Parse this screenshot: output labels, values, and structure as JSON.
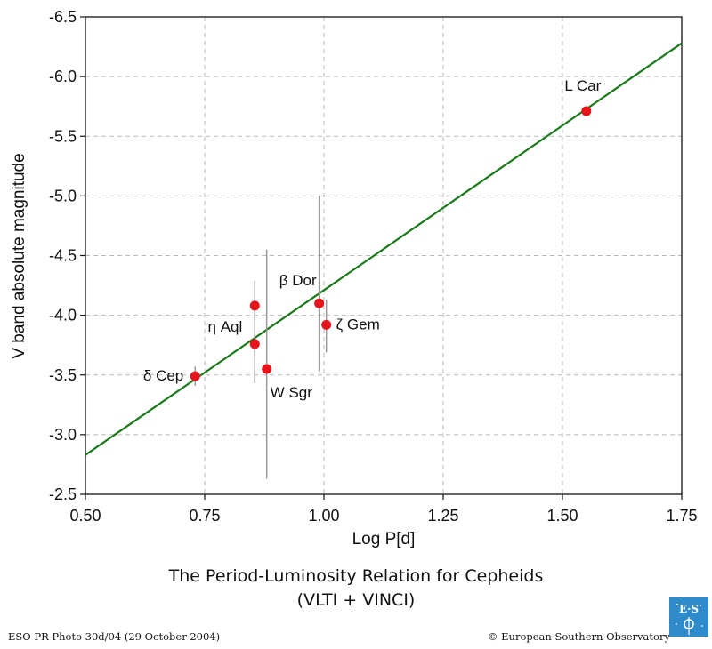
{
  "chart_data": {
    "type": "scatter",
    "xlabel": "Log P[d]",
    "ylabel": "V band absolute magnitude",
    "xlim": [
      0.5,
      1.75
    ],
    "ylim": [
      -2.5,
      -6.5
    ],
    "y_inverted": true,
    "xticks": [
      "0.50",
      "0.75",
      "1.00",
      "1.25",
      "1.50",
      "1.75"
    ],
    "yticks": [
      "-6.5",
      "-6.0",
      "-5.5",
      "-5.0",
      "-4.5",
      "-4.0",
      "-3.5",
      "-3.0",
      "-2.5"
    ],
    "grid": true,
    "fit_line": {
      "x": [
        0.5,
        1.75
      ],
      "y": [
        -2.83,
        -6.28
      ],
      "color": "#1a7a1a"
    },
    "points": [
      {
        "label": "δ Cep",
        "x": 0.73,
        "y": -3.49,
        "err_lo": -3.41,
        "err_hi": -3.57
      },
      {
        "label": "η Aql",
        "x": 0.855,
        "y": -3.76,
        "err_lo": -3.43,
        "err_hi": -4.08
      },
      {
        "label": "",
        "x": 0.855,
        "y": -4.08,
        "err_lo": -4.08,
        "err_hi": -4.29
      },
      {
        "label": "W Sgr",
        "x": 0.88,
        "y": -3.55,
        "err_lo": -2.63,
        "err_hi": -4.55
      },
      {
        "label": "β Dor",
        "x": 0.99,
        "y": -4.1,
        "err_lo": -3.53,
        "err_hi": -5.0
      },
      {
        "label": "ζ  Gem",
        "x": 1.005,
        "y": -3.92,
        "err_lo": -3.69,
        "err_hi": -4.13
      },
      {
        "label": "L Car",
        "x": 1.55,
        "y": -5.71,
        "err_lo": -5.71,
        "err_hi": -5.71
      }
    ],
    "point_color": "#e8141b"
  },
  "caption": {
    "line1": "The Period-Luminosity Relation for Cepheids",
    "line2": "(VLTI + VINCI)"
  },
  "footer": {
    "left": "ESO PR Photo 30d/04 (29 October 2004)",
    "right": "© European Southern Observatory"
  },
  "logo": {
    "text": "ESO",
    "color": "#2f8bc9"
  }
}
